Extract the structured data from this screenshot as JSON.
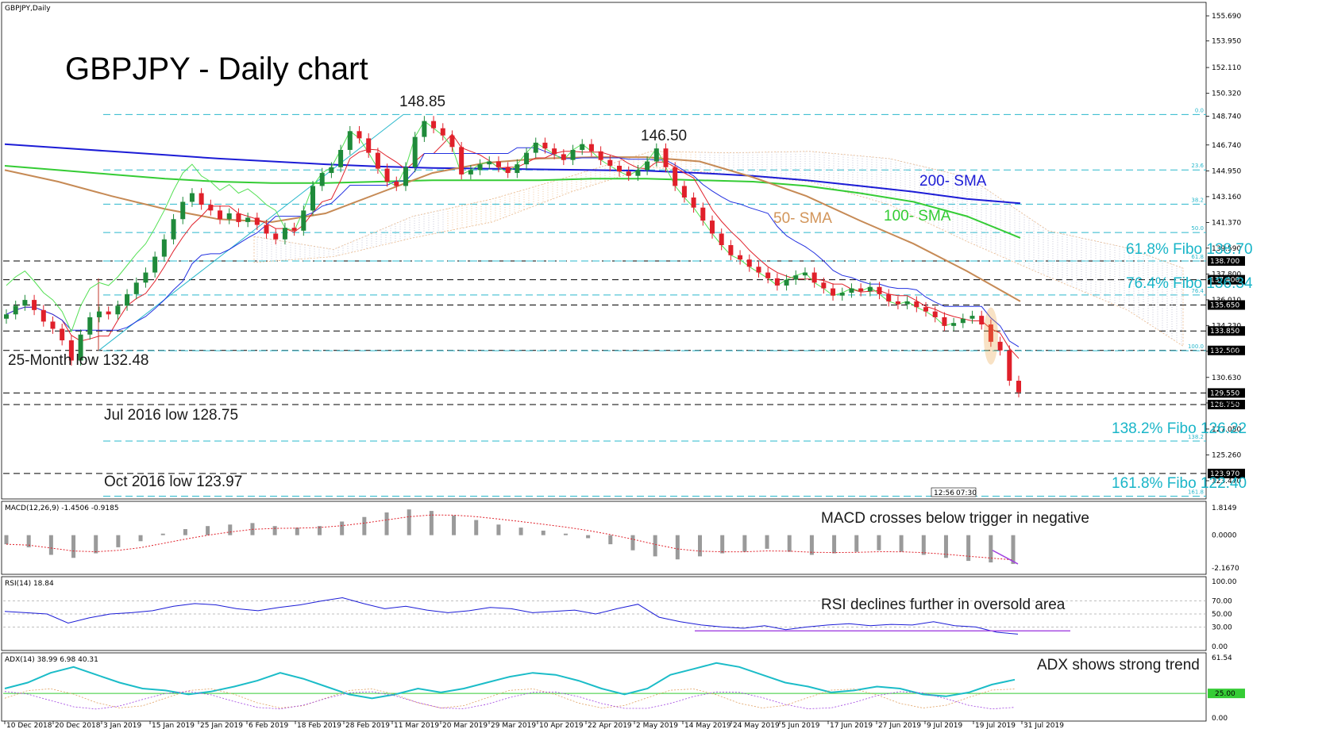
{
  "chart_data": {
    "type": "candlestick",
    "symbol_header": "GBPJPY,Daily",
    "title": "GBPJPY - Daily chart",
    "price_axis_ticks": [
      "155.690",
      "153.950",
      "152.110",
      "150.320",
      "148.740",
      "146.740",
      "144.950",
      "143.160",
      "141.370",
      "139.590",
      "137.800",
      "136.010",
      "134.230",
      "132.440",
      "130.630",
      "128.860",
      "127.050",
      "125.260",
      "123.470"
    ],
    "date_axis_ticks": [
      "10 Dec 2018",
      "20 Dec 2018",
      "3 Jan 2019",
      "15 Jan 2019",
      "25 Jan 2019",
      "6 Feb 2019",
      "18 Feb 2019",
      "28 Feb 2019",
      "11 Mar 2019",
      "20 Mar 2019",
      "29 Mar 2019",
      "10 Apr 2019",
      "22 Apr 2019",
      "2 May 2019",
      "14 May 2019",
      "24 May 2019",
      "5 Jun 2019",
      "17 Jun 2019",
      "27 Jun 2019",
      "9 Jul 2019",
      "19 Jul 2019",
      "31 Jul 2019"
    ],
    "horizontal_levels": [
      {
        "value": 138.7,
        "label": "138.700"
      },
      {
        "value": 137.4,
        "label": "137.400"
      },
      {
        "value": 135.65,
        "label": "135.650"
      },
      {
        "value": 133.85,
        "label": "133.850"
      },
      {
        "value": 132.5,
        "label": "132.500"
      },
      {
        "value": 129.55,
        "label": "129.550"
      },
      {
        "value": 128.75,
        "label": "128.750"
      },
      {
        "value": 123.97,
        "label": "123.970"
      }
    ],
    "fibo_levels": [
      {
        "value": 148.85,
        "ratio": "0.0"
      },
      {
        "value": 145.01,
        "ratio": "23.6"
      },
      {
        "value": 142.64,
        "ratio": "38.2"
      },
      {
        "value": 140.67,
        "ratio": "50.0"
      },
      {
        "value": 138.7,
        "ratio": "61.8"
      },
      {
        "value": 136.34,
        "ratio": "76.4"
      },
      {
        "value": 132.48,
        "ratio": "100.0"
      },
      {
        "value": 126.22,
        "ratio": "138.2"
      },
      {
        "value": 122.4,
        "ratio": "161.8"
      }
    ],
    "annotations": {
      "high_label": "148.85",
      "peak_label": "146.50",
      "sma200": "200- SMA",
      "sma100": "100- SMA",
      "sma50": "50- SMA",
      "fibo618": "61.8% Fibo 138.70",
      "fibo764": "76.4% Fibo 136.34",
      "low25m": "25-Month low 132.48",
      "jul2016": "Jul 2016 low 128.75",
      "fibo1382": "138.2% Fibo 126.22",
      "oct2016": "Oct 2016 low 123.97",
      "fibo1618": "161.8% Fibo 122.40",
      "time_a": "12:56",
      "time_b": "07:30"
    },
    "close_series": [
      135.0,
      135.6,
      136.0,
      135.3,
      134.5,
      134.0,
      133.2,
      131.8,
      133.6,
      134.8,
      135.2,
      135.0,
      135.6,
      136.4,
      137.2,
      137.9,
      139.0,
      140.2,
      141.6,
      142.8,
      143.4,
      142.6,
      142.2,
      141.6,
      142.0,
      141.4,
      141.7,
      141.2,
      140.6,
      140.2,
      141.0,
      140.8,
      142.2,
      143.9,
      144.8,
      145.2,
      146.4,
      147.7,
      147.2,
      146.2,
      145.1,
      144.2,
      143.9,
      145.2,
      147.3,
      148.4,
      147.9,
      147.4,
      146.6,
      144.7,
      145.0,
      145.4,
      145.6,
      145.2,
      144.8,
      145.4,
      146.2,
      146.9,
      146.5,
      146.1,
      145.7,
      146.4,
      146.8,
      146.3,
      145.7,
      145.3,
      144.9,
      144.6,
      145.0,
      145.6,
      146.5,
      145.2,
      143.9,
      143.1,
      142.4,
      141.5,
      140.6,
      139.8,
      139.1,
      138.8,
      138.3,
      137.9,
      137.5,
      137.0,
      137.4,
      137.7,
      137.9,
      137.2,
      136.8,
      136.3,
      136.5,
      136.8,
      136.6,
      136.9,
      136.4,
      135.9,
      135.7,
      135.9,
      135.5,
      135.2,
      134.8,
      134.2,
      134.4,
      134.7,
      134.9,
      134.3,
      133.1,
      132.5,
      130.4,
      129.6
    ],
    "sma200": [
      146.8,
      146.55,
      146.3,
      146.05,
      145.8,
      145.6,
      145.4,
      145.25,
      145.15,
      145.1,
      145.05,
      145.0,
      144.95,
      144.8,
      144.6,
      144.3,
      143.9,
      143.5,
      143.0,
      142.7
    ],
    "sma100": [
      145.3,
      145.0,
      144.7,
      144.4,
      144.2,
      144.1,
      144.1,
      144.2,
      144.3,
      144.3,
      144.3,
      144.4,
      144.4,
      144.3,
      144.2,
      143.9,
      143.4,
      142.8,
      141.8,
      140.3
    ],
    "sma50": [
      145.0,
      144.2,
      143.2,
      142.3,
      141.6,
      141.4,
      142.0,
      143.4,
      144.8,
      145.5,
      145.8,
      145.9,
      145.9,
      145.6,
      144.5,
      143.2,
      141.5,
      139.9,
      138.0,
      135.9
    ],
    "sub_panels": [
      {
        "name": "MACD",
        "label": "MACD(12,26,9) -1.4506 -0.9185",
        "annotation": "MACD crosses below trigger in negative",
        "axis": [
          "1.8149",
          "0.0000",
          "-2.1670"
        ],
        "histogram": [
          -0.6,
          -0.8,
          -1.3,
          -1.5,
          -1.2,
          -0.8,
          -0.4,
          0.1,
          0.4,
          0.6,
          0.7,
          0.8,
          0.6,
          0.5,
          0.6,
          0.9,
          1.2,
          1.5,
          1.7,
          1.6,
          1.3,
          1.0,
          0.7,
          0.5,
          0.3,
          0.1,
          -0.2,
          -0.6,
          -1.0,
          -1.4,
          -1.6,
          -1.4,
          -1.2,
          -1.1,
          -0.9,
          -1.1,
          -1.3,
          -1.2,
          -1.1,
          -1.0,
          -1.1,
          -1.3,
          -1.5,
          -1.7,
          -1.8,
          -1.9
        ]
      },
      {
        "name": "RSI",
        "label": "RSI(14) 18.84",
        "annotation": "RSI declines further in oversold area",
        "axis": [
          "100.00",
          "70.00",
          "50.00",
          "30.00",
          "0.00"
        ],
        "values": [
          54,
          52,
          50,
          36,
          44,
          50,
          52,
          55,
          62,
          66,
          64,
          58,
          55,
          60,
          64,
          70,
          75,
          66,
          58,
          62,
          56,
          52,
          55,
          60,
          58,
          52,
          54,
          56,
          50,
          58,
          65,
          45,
          38,
          33,
          30,
          28,
          32,
          26,
          30,
          33,
          35,
          32,
          34,
          33,
          38,
          32,
          30,
          22,
          19
        ],
        "support_value": 24
      },
      {
        "name": "ADX",
        "label": "ADX(14) 38.99 6.98 40.31",
        "annotation": "ADX shows strong trend",
        "axis": [
          "61.54",
          "25.00",
          "0.00"
        ],
        "adx": [
          30,
          36,
          46,
          52,
          44,
          36,
          30,
          28,
          24,
          27,
          32,
          38,
          46,
          40,
          32,
          24,
          20,
          24,
          30,
          26,
          30,
          36,
          42,
          46,
          44,
          38,
          30,
          24,
          30,
          44,
          50,
          56,
          52,
          44,
          36,
          32,
          26,
          28,
          32,
          30,
          24,
          22,
          26,
          34,
          39
        ],
        "reference": "25.00"
      }
    ]
  }
}
